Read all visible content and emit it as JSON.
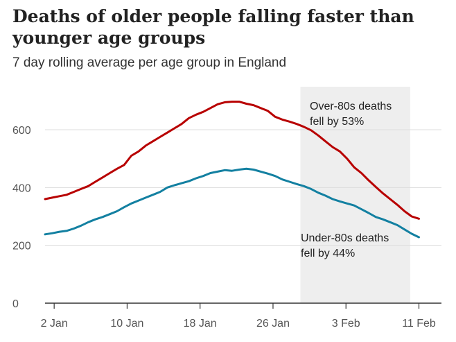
{
  "chart_data": {
    "type": "line",
    "title": "Deaths of older people falling faster than younger age groups",
    "subtitle": "7 day rolling average per age group in England",
    "x_ticks": [
      "2 Jan",
      "10 Jan",
      "18 Jan",
      "26 Jan",
      "3 Feb",
      "11 Feb"
    ],
    "y_ticks": [
      0,
      200,
      400,
      600
    ],
    "xlim": [
      1,
      12
    ],
    "ylim": [
      0,
      740
    ],
    "grid": "horizontal",
    "highlight_range": [
      29,
      40
    ],
    "colors": {
      "over80": "#b80000",
      "under80": "#1380a1",
      "highlight": "#eeeeee",
      "grid": "#dddddd"
    },
    "series": [
      {
        "key": "over80",
        "values": [
          360,
          365,
          370,
          375,
          385,
          395,
          405,
          420,
          435,
          450,
          465,
          478,
          510,
          525,
          545,
          560,
          575,
          590,
          605,
          620,
          640,
          652,
          662,
          675,
          688,
          695,
          697,
          697,
          690,
          685,
          675,
          665,
          645,
          635,
          628,
          620,
          610,
          598,
          580,
          560,
          540,
          525,
          500,
          470,
          450,
          425,
          402,
          380,
          360,
          340,
          318,
          300,
          292
        ]
      },
      {
        "key": "under80",
        "values": [
          238,
          242,
          247,
          250,
          258,
          268,
          280,
          290,
          298,
          308,
          318,
          332,
          345,
          355,
          365,
          375,
          385,
          400,
          408,
          415,
          422,
          432,
          440,
          450,
          455,
          460,
          458,
          462,
          465,
          462,
          455,
          448,
          440,
          428,
          420,
          412,
          405,
          395,
          382,
          372,
          360,
          352,
          345,
          338,
          325,
          312,
          298,
          290,
          280,
          270,
          255,
          240,
          228
        ]
      }
    ],
    "annotations": [
      {
        "series": "over80",
        "lines": [
          "Over-80s deaths",
          "fell by 53%"
        ]
      },
      {
        "series": "under80",
        "lines": [
          "Under-80s deaths",
          "fell by 44%"
        ]
      }
    ]
  }
}
